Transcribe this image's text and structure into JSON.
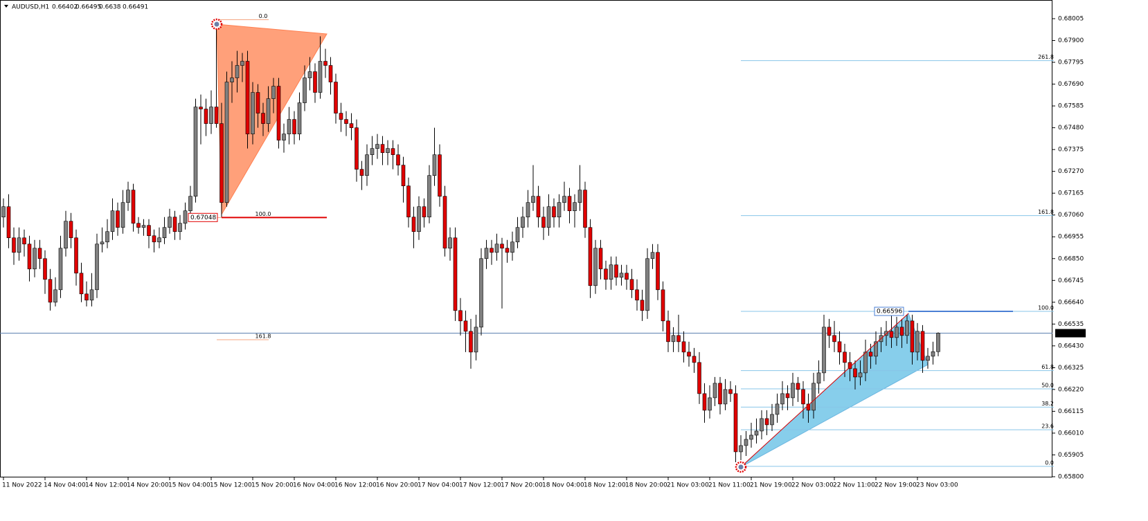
{
  "chart_data": {
    "type": "candlestick",
    "symbol": "AUDUSD,H1",
    "up_color": "#808080",
    "down_color": "#e00000",
    "ylim": [
      0.658,
      0.68005
    ],
    "yticks": [
      0.68005,
      {
        "value": 0.679,
        "label": "0.67900"
      },
      0.67795,
      {
        "value": 0.6769,
        "label": "0.67690"
      },
      0.67585,
      {
        "value": 0.6748,
        "label": "0.67480"
      },
      0.67375,
      {
        "value": 0.6727,
        "label": "0.67270"
      },
      0.67165,
      {
        "value": 0.6706,
        "label": "0.67060"
      },
      0.66955,
      {
        "value": 0.6685,
        "label": "0.66850"
      },
      0.66745,
      {
        "value": 0.6664,
        "label": "0.66640"
      },
      0.66535,
      {
        "value": 0.6643,
        "label": "0.66430"
      },
      0.66325,
      {
        "value": 0.6622,
        "label": "0.66220"
      },
      0.66115,
      {
        "value": 0.6601,
        "label": "0.66010"
      },
      0.65905,
      {
        "value": 0.658,
        "label": "0.65800"
      }
    ],
    "xtick_labels": [
      "11 Nov 2022",
      "14 Nov 04:00",
      "14 Nov 12:00",
      "14 Nov 20:00",
      "15 Nov 04:00",
      "15 Nov 12:00",
      "15 Nov 20:00",
      "16 Nov 04:00",
      "16 Nov 12:00",
      "16 Nov 20:00",
      "17 Nov 04:00",
      "17 Nov 12:00",
      "17 Nov 20:00",
      "18 Nov 04:00",
      "18 Nov 12:00",
      "18 Nov 20:00",
      "21 Nov 03:00",
      "21 Nov 11:00",
      "21 Nov 19:00",
      "22 Nov 03:00",
      "22 Nov 11:00",
      "22 Nov 19:00",
      "23 Nov 03:00"
    ],
    "fibs": [
      {
        "from": 0.68,
        "to": 0.67048,
        "color": "#f4a582",
        "price_color": "#e00000",
        "levels": [
          {
            "value": 0,
            "label": "0.0"
          },
          {
            "value": 100,
            "label": "100.0"
          },
          161.8
        ]
      },
      {
        "from": 0.6585,
        "to": 0.66596,
        "color": "#87c5e8",
        "price_color": "#4a7fd4",
        "levels": [
          {
            "value": 0,
            "label": "0.0"
          },
          23.6,
          38.2,
          {
            "value": 50,
            "label": "50.0"
          },
          61.8,
          {
            "value": 100,
            "label": "100.0"
          },
          161.8,
          261.8
        ]
      }
    ],
    "ohlc": [
      [
        0.6705,
        0.6714,
        0.67,
        0.671
      ],
      [
        0.671,
        0.6716,
        0.669,
        0.6695
      ],
      [
        0.6695,
        0.67,
        0.6682,
        0.6688
      ],
      [
        0.6688,
        0.67,
        0.6684,
        0.6695
      ],
      [
        0.6695,
        0.6699,
        0.6686,
        0.6692
      ],
      [
        0.6692,
        0.6696,
        0.6674,
        0.668
      ],
      [
        0.668,
        0.6694,
        0.6676,
        0.669
      ],
      [
        0.669,
        0.6694,
        0.668,
        0.6685
      ],
      [
        0.6685,
        0.6689,
        0.6668,
        0.6675
      ],
      [
        0.6675,
        0.668,
        0.666,
        0.6664
      ],
      [
        0.6664,
        0.6676,
        0.6662,
        0.667
      ],
      [
        0.667,
        0.6696,
        0.6666,
        0.669
      ],
      [
        0.669,
        0.6708,
        0.6686,
        0.6703
      ],
      [
        0.6703,
        0.6707,
        0.669,
        0.6695
      ],
      [
        0.6695,
        0.6699,
        0.6672,
        0.6678
      ],
      [
        0.6678,
        0.6683,
        0.6664,
        0.6668
      ],
      [
        0.6668,
        0.6674,
        0.6662,
        0.6665
      ],
      [
        0.6665,
        0.6678,
        0.6662,
        0.667
      ],
      [
        0.667,
        0.6697,
        0.6666,
        0.6692
      ],
      [
        0.6692,
        0.67,
        0.6688,
        0.6693
      ],
      [
        0.6693,
        0.6704,
        0.669,
        0.6698
      ],
      [
        0.6698,
        0.6714,
        0.6694,
        0.6708
      ],
      [
        0.6708,
        0.6712,
        0.6696,
        0.67
      ],
      [
        0.67,
        0.6718,
        0.6697,
        0.6712
      ],
      [
        0.6712,
        0.6722,
        0.6708,
        0.6718
      ],
      [
        0.6718,
        0.6721,
        0.6698,
        0.6702
      ],
      [
        0.6702,
        0.6705,
        0.6697,
        0.67
      ],
      [
        0.67,
        0.6704,
        0.6696,
        0.6701
      ],
      [
        0.6701,
        0.6704,
        0.669,
        0.6696
      ],
      [
        0.6696,
        0.6699,
        0.6688,
        0.6693
      ],
      [
        0.6693,
        0.67,
        0.669,
        0.6695
      ],
      [
        0.6695,
        0.6705,
        0.6692,
        0.67
      ],
      [
        0.67,
        0.6709,
        0.6697,
        0.6705
      ],
      [
        0.6705,
        0.6708,
        0.6694,
        0.6698
      ],
      [
        0.6698,
        0.6706,
        0.6694,
        0.6702
      ],
      [
        0.6702,
        0.6712,
        0.6699,
        0.6708
      ],
      [
        0.6708,
        0.672,
        0.6705,
        0.6715
      ],
      [
        0.6715,
        0.6762,
        0.6712,
        0.6758
      ],
      [
        0.6758,
        0.6764,
        0.674,
        0.6757
      ],
      [
        0.6757,
        0.6762,
        0.6744,
        0.675
      ],
      [
        0.675,
        0.6766,
        0.6745,
        0.6758
      ],
      [
        0.6758,
        0.68,
        0.6748,
        0.675
      ],
      [
        0.675,
        0.676,
        0.6705,
        0.6712
      ],
      [
        0.6712,
        0.6775,
        0.671,
        0.677
      ],
      [
        0.677,
        0.678,
        0.676,
        0.6772
      ],
      [
        0.6772,
        0.6785,
        0.6765,
        0.6778
      ],
      [
        0.6778,
        0.6784,
        0.677,
        0.678
      ],
      [
        0.678,
        0.6785,
        0.6738,
        0.6745
      ],
      [
        0.6745,
        0.677,
        0.674,
        0.6765
      ],
      [
        0.6765,
        0.6769,
        0.6748,
        0.6755
      ],
      [
        0.6755,
        0.676,
        0.6744,
        0.675
      ],
      [
        0.675,
        0.6768,
        0.6746,
        0.6762
      ],
      [
        0.6762,
        0.6772,
        0.6755,
        0.6768
      ],
      [
        0.6768,
        0.6772,
        0.6738,
        0.6742
      ],
      [
        0.6742,
        0.675,
        0.6736,
        0.6745
      ],
      [
        0.6745,
        0.6758,
        0.674,
        0.6752
      ],
      [
        0.6752,
        0.6756,
        0.674,
        0.6745
      ],
      [
        0.6745,
        0.6765,
        0.6742,
        0.676
      ],
      [
        0.676,
        0.6778,
        0.6756,
        0.6772
      ],
      [
        0.6772,
        0.6782,
        0.6766,
        0.6775
      ],
      [
        0.6775,
        0.6779,
        0.676,
        0.6765
      ],
      [
        0.6765,
        0.6792,
        0.6762,
        0.678
      ],
      [
        0.678,
        0.6786,
        0.6772,
        0.6778
      ],
      [
        0.6778,
        0.6782,
        0.6764,
        0.677
      ],
      [
        0.677,
        0.6774,
        0.675,
        0.6755
      ],
      [
        0.6755,
        0.676,
        0.6746,
        0.6752
      ],
      [
        0.6752,
        0.6756,
        0.6744,
        0.675
      ],
      [
        0.675,
        0.6755,
        0.6742,
        0.6748
      ],
      [
        0.6748,
        0.6752,
        0.6722,
        0.6728
      ],
      [
        0.6728,
        0.6732,
        0.6718,
        0.6725
      ],
      [
        0.6725,
        0.674,
        0.672,
        0.6735
      ],
      [
        0.6735,
        0.6744,
        0.673,
        0.6738
      ],
      [
        0.6738,
        0.6745,
        0.6733,
        0.674
      ],
      [
        0.674,
        0.6744,
        0.673,
        0.6736
      ],
      [
        0.6736,
        0.6742,
        0.673,
        0.6738
      ],
      [
        0.6738,
        0.6742,
        0.6728,
        0.6735
      ],
      [
        0.6735,
        0.674,
        0.6725,
        0.673
      ],
      [
        0.673,
        0.6734,
        0.6712,
        0.672
      ],
      [
        0.672,
        0.6724,
        0.67,
        0.6705
      ],
      [
        0.6705,
        0.671,
        0.669,
        0.6698
      ],
      [
        0.6698,
        0.6715,
        0.6694,
        0.671
      ],
      [
        0.671,
        0.6714,
        0.67,
        0.6705
      ],
      [
        0.6705,
        0.673,
        0.6702,
        0.6725
      ],
      [
        0.6725,
        0.6748,
        0.672,
        0.6735
      ],
      [
        0.6735,
        0.674,
        0.671,
        0.6715
      ],
      [
        0.6715,
        0.672,
        0.6686,
        0.669
      ],
      [
        0.669,
        0.67,
        0.6684,
        0.6695
      ],
      [
        0.6695,
        0.67,
        0.6655,
        0.666
      ],
      [
        0.666,
        0.6666,
        0.6648,
        0.6655
      ],
      [
        0.6655,
        0.666,
        0.664,
        0.665
      ],
      [
        0.665,
        0.6656,
        0.6632,
        0.664
      ],
      [
        0.664,
        0.6658,
        0.6636,
        0.6652
      ],
      [
        0.6652,
        0.669,
        0.6648,
        0.6685
      ],
      [
        0.6685,
        0.6694,
        0.668,
        0.669
      ],
      [
        0.669,
        0.6694,
        0.6682,
        0.6688
      ],
      [
        0.6688,
        0.6697,
        0.6684,
        0.6692
      ],
      [
        0.6692,
        0.6695,
        0.6661,
        0.669
      ],
      [
        0.669,
        0.6694,
        0.6683,
        0.6688
      ],
      [
        0.6688,
        0.6698,
        0.6684,
        0.6693
      ],
      [
        0.6693,
        0.6705,
        0.669,
        0.67
      ],
      [
        0.67,
        0.671,
        0.6695,
        0.6705
      ],
      [
        0.6705,
        0.6718,
        0.67,
        0.6712
      ],
      [
        0.6712,
        0.673,
        0.6708,
        0.6715
      ],
      [
        0.6715,
        0.672,
        0.67,
        0.6705
      ],
      [
        0.6705,
        0.671,
        0.6694,
        0.67
      ],
      [
        0.67,
        0.6716,
        0.6696,
        0.671
      ],
      [
        0.671,
        0.6714,
        0.67,
        0.6705
      ],
      [
        0.6705,
        0.6716,
        0.67,
        0.6712
      ],
      [
        0.6712,
        0.6722,
        0.6708,
        0.6715
      ],
      [
        0.6715,
        0.6719,
        0.6702,
        0.6708
      ],
      [
        0.6708,
        0.6716,
        0.67,
        0.6712
      ],
      [
        0.6712,
        0.673,
        0.6708,
        0.6718
      ],
      [
        0.6718,
        0.6722,
        0.6695,
        0.67
      ],
      [
        0.67,
        0.6704,
        0.6666,
        0.6672
      ],
      [
        0.6672,
        0.6694,
        0.6668,
        0.669
      ],
      [
        0.669,
        0.6694,
        0.6675,
        0.668
      ],
      [
        0.668,
        0.6684,
        0.667,
        0.6675
      ],
      [
        0.6675,
        0.6686,
        0.667,
        0.6682
      ],
      [
        0.6682,
        0.6686,
        0.6672,
        0.6676
      ],
      [
        0.6676,
        0.6682,
        0.6672,
        0.6678
      ],
      [
        0.6678,
        0.6682,
        0.667,
        0.6675
      ],
      [
        0.6675,
        0.668,
        0.6666,
        0.667
      ],
      [
        0.667,
        0.6675,
        0.666,
        0.6665
      ],
      [
        0.6665,
        0.667,
        0.6655,
        0.666
      ],
      [
        0.666,
        0.669,
        0.6656,
        0.6685
      ],
      [
        0.6685,
        0.6692,
        0.668,
        0.6688
      ],
      [
        0.6688,
        0.6692,
        0.6665,
        0.667
      ],
      [
        0.667,
        0.6674,
        0.665,
        0.6655
      ],
      [
        0.6655,
        0.666,
        0.664,
        0.6645
      ],
      [
        0.6645,
        0.6652,
        0.664,
        0.6648
      ],
      [
        0.6648,
        0.6658,
        0.664,
        0.6645
      ],
      [
        0.6645,
        0.665,
        0.6635,
        0.664
      ],
      [
        0.664,
        0.6645,
        0.6633,
        0.6638
      ],
      [
        0.6638,
        0.6642,
        0.663,
        0.6635
      ],
      [
        0.6635,
        0.664,
        0.6615,
        0.662
      ],
      [
        0.662,
        0.6625,
        0.6606,
        0.6612
      ],
      [
        0.6612,
        0.6624,
        0.6608,
        0.6618
      ],
      [
        0.6618,
        0.6628,
        0.6614,
        0.6625
      ],
      [
        0.6625,
        0.6628,
        0.661,
        0.6615
      ],
      [
        0.6615,
        0.6627,
        0.6612,
        0.6622
      ],
      [
        0.6622,
        0.6626,
        0.6616,
        0.662
      ],
      [
        0.662,
        0.6624,
        0.6587,
        0.6592
      ],
      [
        0.6592,
        0.66,
        0.6588,
        0.6595
      ],
      [
        0.6595,
        0.6602,
        0.659,
        0.6598
      ],
      [
        0.6598,
        0.6606,
        0.6594,
        0.66
      ],
      [
        0.66,
        0.6608,
        0.6596,
        0.6602
      ],
      [
        0.6602,
        0.6612,
        0.6598,
        0.6608
      ],
      [
        0.6608,
        0.6612,
        0.66,
        0.6605
      ],
      [
        0.6605,
        0.6615,
        0.6602,
        0.661
      ],
      [
        0.661,
        0.662,
        0.6606,
        0.6615
      ],
      [
        0.6615,
        0.6626,
        0.6612,
        0.662
      ],
      [
        0.662,
        0.6624,
        0.6612,
        0.6618
      ],
      [
        0.6618,
        0.663,
        0.6614,
        0.6625
      ],
      [
        0.6625,
        0.6628,
        0.6616,
        0.6622
      ],
      [
        0.6622,
        0.6626,
        0.6608,
        0.6615
      ],
      [
        0.6615,
        0.662,
        0.6606,
        0.6612
      ],
      [
        0.6612,
        0.663,
        0.6608,
        0.6625
      ],
      [
        0.6625,
        0.6636,
        0.662,
        0.663
      ],
      [
        0.663,
        0.6658,
        0.6626,
        0.6652
      ],
      [
        0.6652,
        0.6656,
        0.6642,
        0.6648
      ],
      [
        0.6648,
        0.6655,
        0.664,
        0.6645
      ],
      [
        0.6645,
        0.665,
        0.6634,
        0.664
      ],
      [
        0.664,
        0.6644,
        0.6628,
        0.6635
      ],
      [
        0.6635,
        0.664,
        0.6626,
        0.6632
      ],
      [
        0.6632,
        0.6636,
        0.6622,
        0.6628
      ],
      [
        0.6628,
        0.6636,
        0.6624,
        0.663
      ],
      [
        0.663,
        0.6646,
        0.6626,
        0.664
      ],
      [
        0.664,
        0.6644,
        0.6632,
        0.6638
      ],
      [
        0.6638,
        0.665,
        0.6634,
        0.6645
      ],
      [
        0.6645,
        0.6652,
        0.664,
        0.6648
      ],
      [
        0.6648,
        0.6655,
        0.6643,
        0.665
      ],
      [
        0.665,
        0.666,
        0.6642,
        0.6647
      ],
      [
        0.6647,
        0.6657,
        0.6643,
        0.6652
      ],
      [
        0.6652,
        0.6656,
        0.6642,
        0.6648
      ],
      [
        0.6648,
        0.6658,
        0.6644,
        0.6655
      ],
      [
        0.6655,
        0.6658,
        0.6634,
        0.664
      ],
      [
        0.664,
        0.6654,
        0.6636,
        0.665
      ],
      [
        0.665,
        0.6653,
        0.663,
        0.6636
      ],
      [
        0.6636,
        0.6642,
        0.6632,
        0.6638
      ],
      [
        0.6638,
        0.6645,
        0.6634,
        0.66402
      ],
      [
        0.66402,
        0.66495,
        0.6638,
        0.66491
      ]
    ]
  }
}
